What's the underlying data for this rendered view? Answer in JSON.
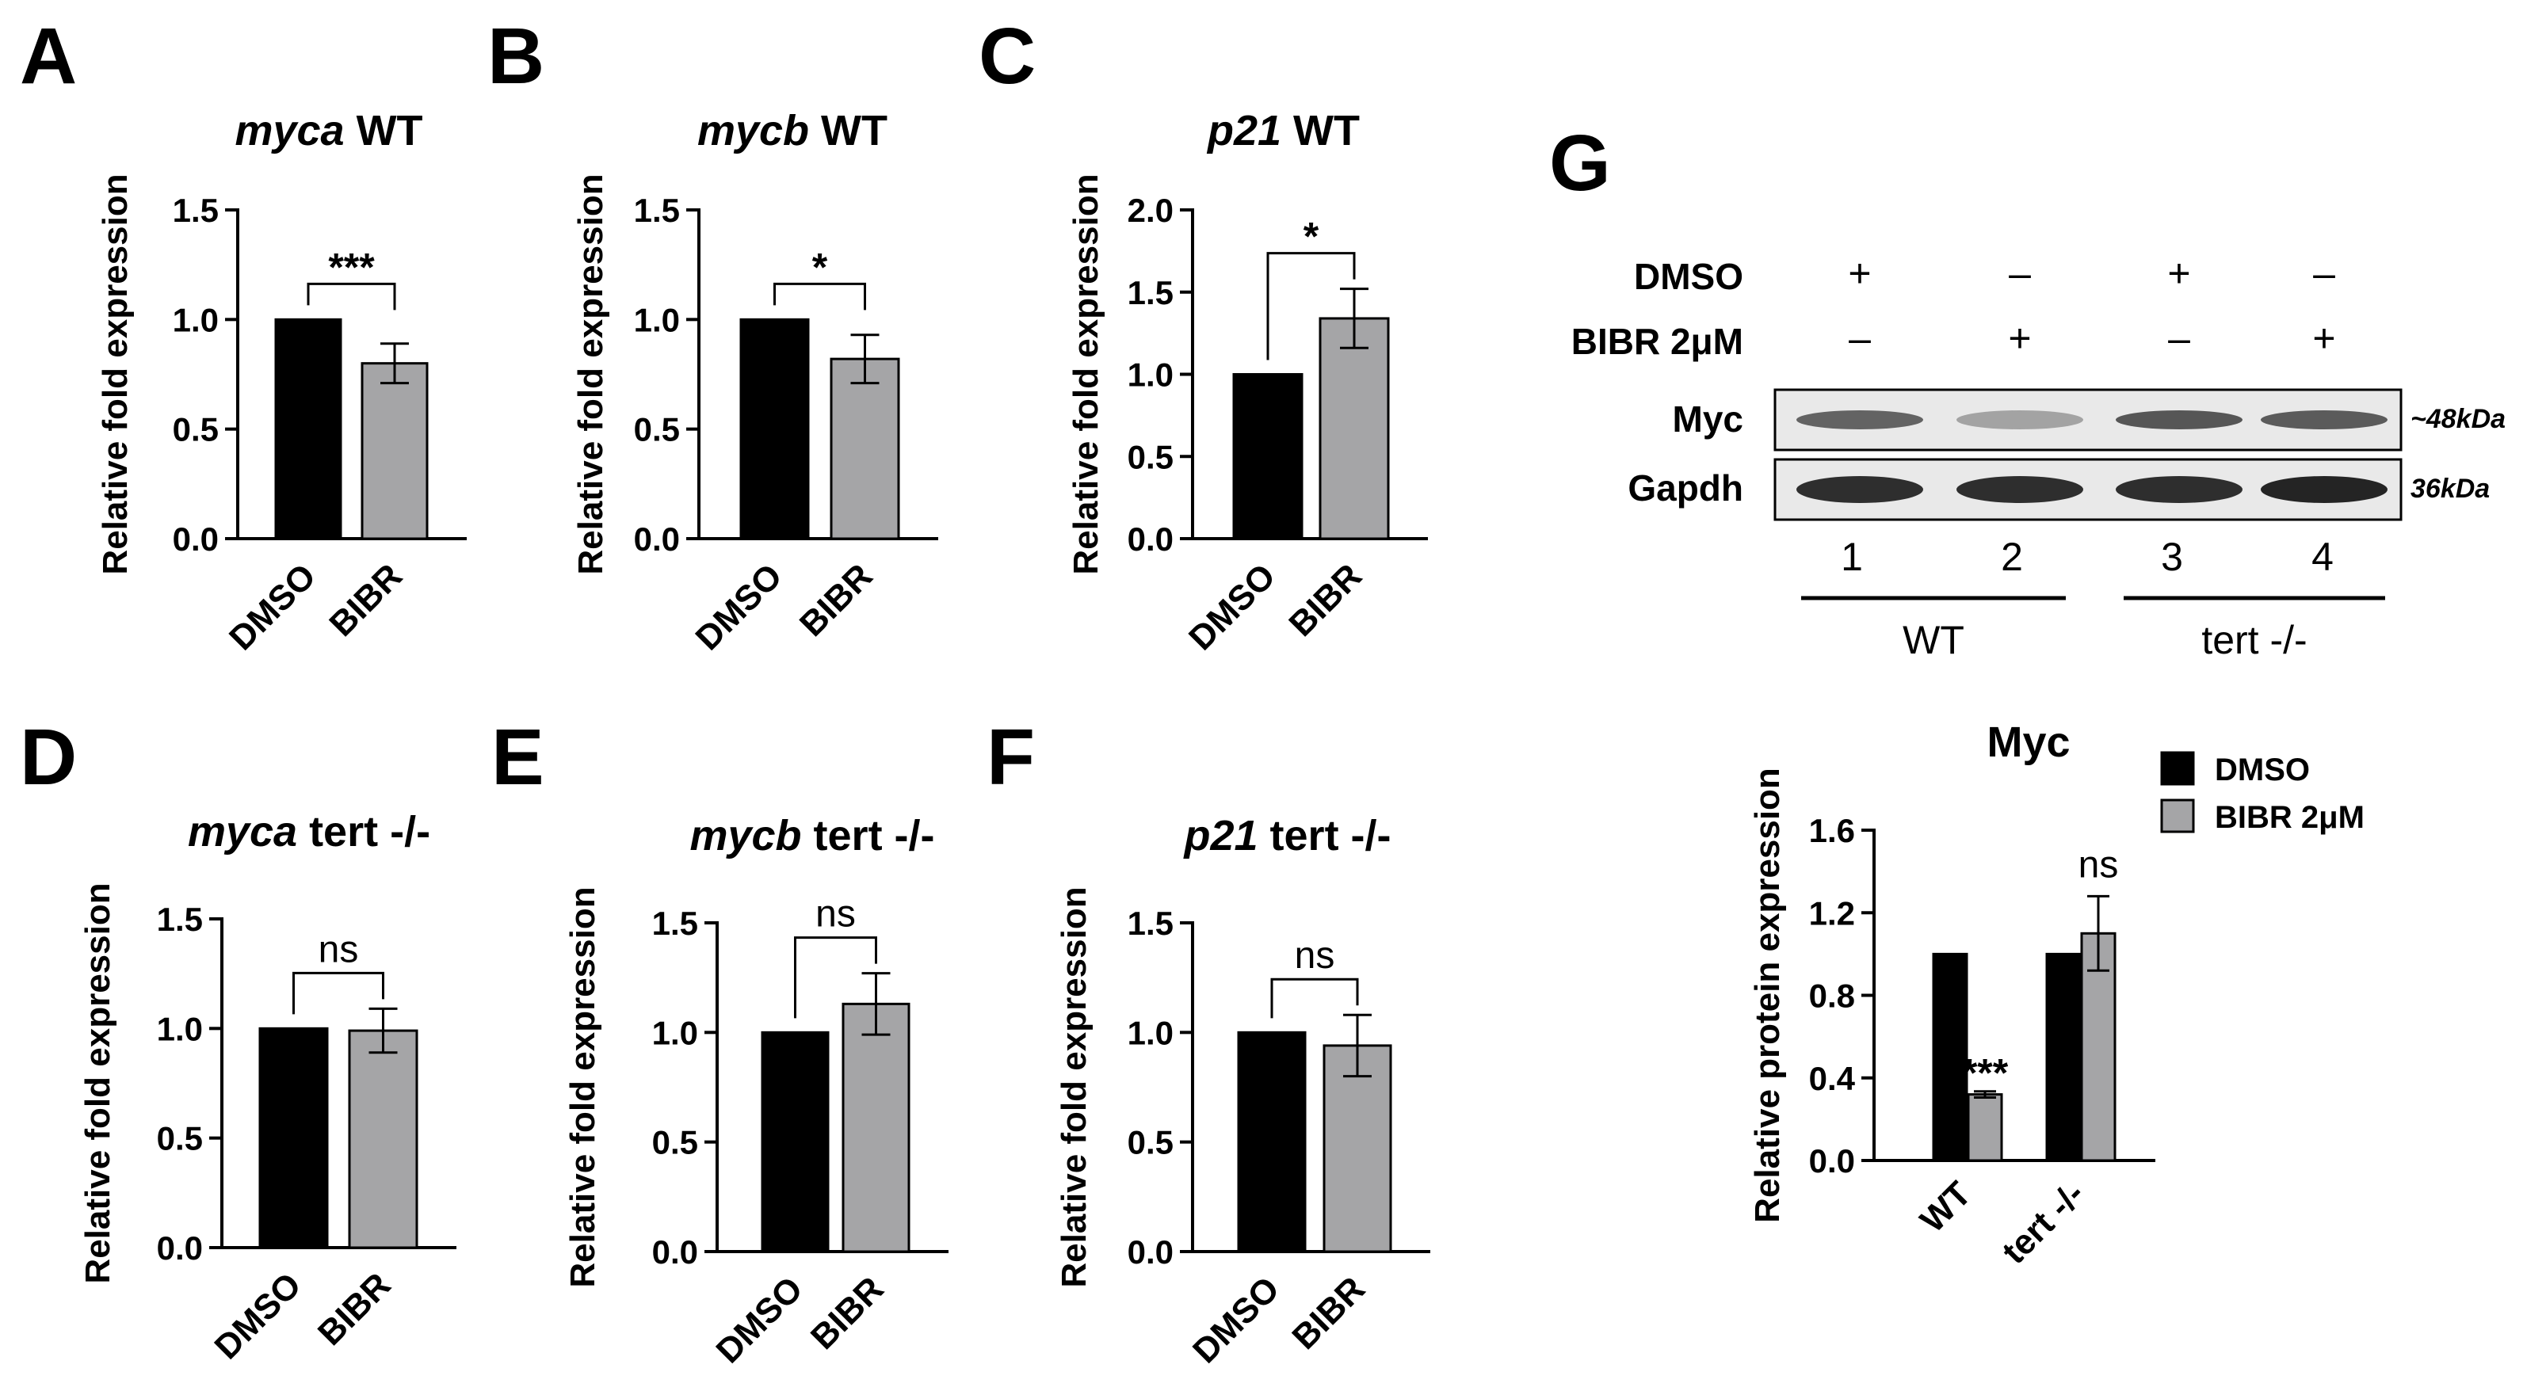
{
  "colors": {
    "dmso": "#000000",
    "bibr": "#a5a5a7",
    "axis": "#000000",
    "band": "#2a2a2a",
    "blot_bg": "#e9e9e9"
  },
  "chart_data": [
    {
      "panel": "A",
      "type": "bar",
      "title_gene": "myca",
      "title_suffix": " WT",
      "ylabel": "Relative fold expression",
      "categories": [
        "DMSO",
        "BIBR"
      ],
      "values": [
        1.0,
        0.8
      ],
      "errors": [
        0,
        0.09
      ],
      "ylim": [
        0,
        1.5
      ],
      "yticks": [
        "0.0",
        "0.5",
        "1.0",
        "1.5"
      ],
      "significance": "***"
    },
    {
      "panel": "B",
      "type": "bar",
      "title_gene": "mycb",
      "title_suffix": " WT",
      "ylabel": "Relative fold expression",
      "categories": [
        "DMSO",
        "BIBR"
      ],
      "values": [
        1.0,
        0.82
      ],
      "errors": [
        0,
        0.11
      ],
      "ylim": [
        0,
        1.5
      ],
      "yticks": [
        "0.0",
        "0.5",
        "1.0",
        "1.5"
      ],
      "significance": "*"
    },
    {
      "panel": "C",
      "type": "bar",
      "title_gene": "p21",
      "title_suffix": " WT",
      "ylabel": "Relative fold expression",
      "categories": [
        "DMSO",
        "BIBR"
      ],
      "values": [
        1.0,
        1.34
      ],
      "errors": [
        0,
        0.18
      ],
      "ylim": [
        0,
        2.0
      ],
      "yticks": [
        "0.0",
        "0.5",
        "1.0",
        "1.5",
        "2.0"
      ],
      "significance": "*"
    },
    {
      "panel": "D",
      "type": "bar",
      "title_gene": "myca",
      "title_suffix": "  tert -/-",
      "ylabel": "Relative fold expression",
      "categories": [
        "DMSO",
        "BIBR"
      ],
      "values": [
        1.0,
        0.99
      ],
      "errors": [
        0,
        0.1
      ],
      "ylim": [
        0,
        1.5
      ],
      "yticks": [
        "0.0",
        "0.5",
        "1.0",
        "1.5"
      ],
      "significance": "ns"
    },
    {
      "panel": "E",
      "type": "bar",
      "title_gene": "mycb",
      "title_suffix": " tert -/-",
      "ylabel": "Relative fold expression",
      "categories": [
        "DMSO",
        "BIBR"
      ],
      "values": [
        1.0,
        1.13
      ],
      "errors": [
        0,
        0.14
      ],
      "ylim": [
        0,
        1.5
      ],
      "yticks": [
        "0.0",
        "0.5",
        "1.0",
        "1.5"
      ],
      "significance": "ns"
    },
    {
      "panel": "F",
      "type": "bar",
      "title_gene": "p21",
      "title_suffix": " tert -/-",
      "ylabel": "Relative fold expression",
      "categories": [
        "DMSO",
        "BIBR"
      ],
      "values": [
        1.0,
        0.94
      ],
      "errors": [
        0,
        0.14
      ],
      "ylim": [
        0,
        1.5
      ],
      "yticks": [
        "0.0",
        "0.5",
        "1.0",
        "1.5"
      ],
      "significance": "ns"
    },
    {
      "panel": "G",
      "type": "bar",
      "title": "Myc",
      "ylabel": "Relative protein expression",
      "categories": [
        "WT",
        "tert -/-"
      ],
      "series": [
        {
          "name": "DMSO",
          "values": [
            1.0,
            1.0
          ],
          "errors": [
            0,
            0
          ]
        },
        {
          "name": "BIBR 2μM",
          "values": [
            0.32,
            1.1
          ],
          "errors": [
            0.015,
            0.18
          ]
        }
      ],
      "ylim": [
        0,
        1.6
      ],
      "yticks": [
        "0.0",
        "0.4",
        "0.8",
        "1.2",
        "1.6"
      ],
      "significance": [
        "***",
        "ns"
      ],
      "legend": "top-right"
    }
  ],
  "western_blot": {
    "panel": "G",
    "rows": [
      {
        "label": "DMSO",
        "signs": [
          "+",
          "–",
          "+",
          "–"
        ]
      },
      {
        "label": "BIBR 2μM",
        "signs": [
          "–",
          "+",
          "–",
          "+"
        ]
      }
    ],
    "bands": [
      {
        "label": "Myc",
        "size": "~48kDa",
        "intensity": [
          0.75,
          0.45,
          0.8,
          0.78
        ]
      },
      {
        "label": "Gapdh",
        "size": "36kDa",
        "intensity": [
          0.95,
          0.95,
          0.95,
          0.98
        ]
      }
    ],
    "lanes": [
      "1",
      "2",
      "3",
      "4"
    ],
    "groups": [
      "WT",
      "tert -/-"
    ]
  }
}
